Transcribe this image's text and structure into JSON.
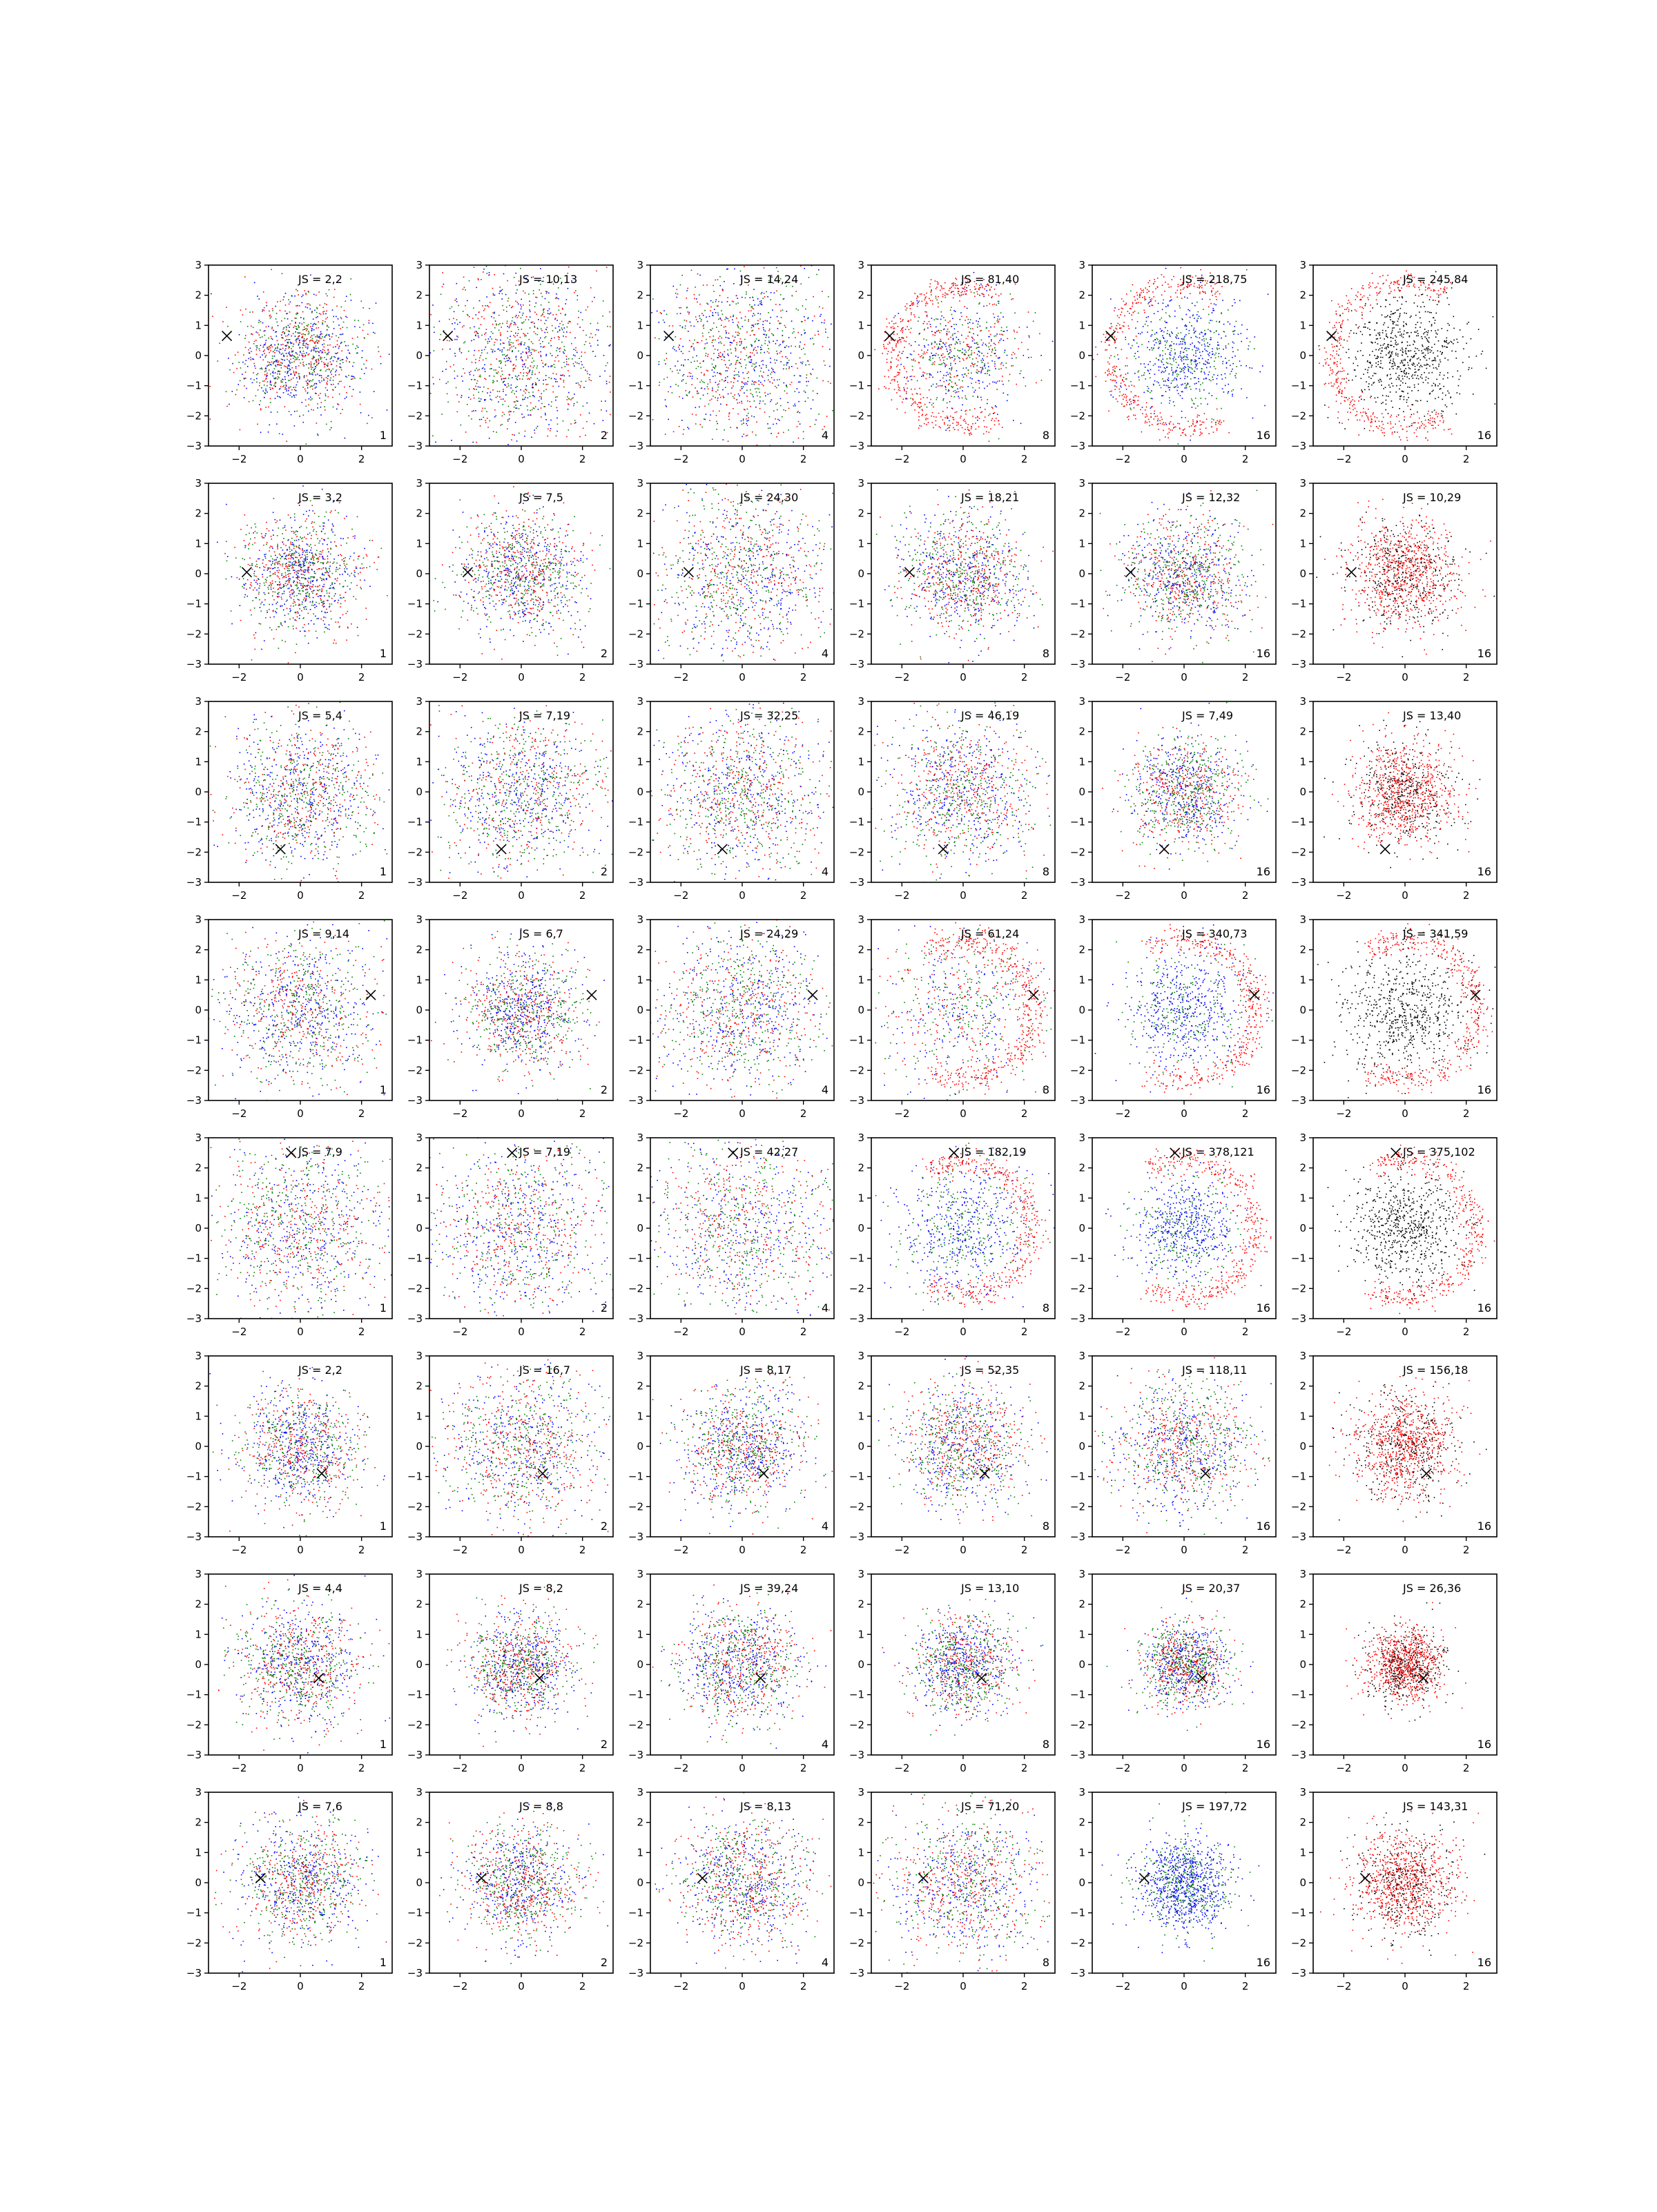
{
  "colors": {
    "red": "#ff0000",
    "green": "#008000",
    "blue": "#0000ff",
    "black": "#000000",
    "frame": "#000000"
  },
  "shared_axes": {
    "xlim": [
      -3,
      3
    ],
    "ylim": [
      -3,
      3
    ],
    "xticks": [
      -2,
      0,
      2
    ],
    "yticks": [
      3,
      2,
      1,
      0,
      -1,
      -2,
      -3
    ],
    "xtick_labels": [
      "−2",
      "0",
      "2"
    ],
    "ytick_labels": [
      "3",
      "2",
      "1",
      "0",
      "−1",
      "−2",
      "−3"
    ]
  },
  "chart_data": [
    {
      "type": "scatter",
      "row": 1,
      "col": 1,
      "title": "JS = 2,2",
      "corner_label": "1",
      "marker": {
        "x": -2.4,
        "y": 0.65
      },
      "spread": 1.0,
      "mix": "rgb",
      "ring": false
    },
    {
      "type": "scatter",
      "row": 1,
      "col": 2,
      "title": "JS = 10,13",
      "corner_label": "2",
      "marker": {
        "x": -2.4,
        "y": 0.65
      },
      "spread": 1.45,
      "mix": "rgb",
      "ring": false
    },
    {
      "type": "scatter",
      "row": 1,
      "col": 3,
      "title": "JS = 14,24",
      "corner_label": "4",
      "marker": {
        "x": -2.4,
        "y": 0.65
      },
      "spread": 1.6,
      "mix": "rgb",
      "ring": false
    },
    {
      "type": "scatter",
      "row": 1,
      "col": 4,
      "title": "JS = 81,40",
      "corner_label": "8",
      "marker": {
        "x": -2.4,
        "y": 0.65
      },
      "spread": 1.0,
      "mix": "rgb",
      "ring": true,
      "ring_dir": "left",
      "ring_r": 2.3
    },
    {
      "type": "scatter",
      "row": 1,
      "col": 5,
      "title": "JS = 218,75",
      "corner_label": "16",
      "marker": {
        "x": -2.4,
        "y": 0.65
      },
      "spread": 0.95,
      "mix": "bg",
      "ring": true,
      "ring_dir": "left",
      "ring_r": 2.4
    },
    {
      "type": "scatter",
      "row": 1,
      "col": 6,
      "title": "JS = 245,84",
      "corner_label": "16",
      "marker": {
        "x": -2.4,
        "y": 0.65
      },
      "spread": 0.95,
      "mix": "k",
      "ring": true,
      "ring_dir": "left",
      "ring_r": 2.4
    },
    {
      "type": "scatter",
      "row": 2,
      "col": 1,
      "title": "JS = 3,2",
      "corner_label": "1",
      "marker": {
        "x": -1.75,
        "y": 0.05
      },
      "spread": 0.95,
      "mix": "rgb",
      "ring": false
    },
    {
      "type": "scatter",
      "row": 2,
      "col": 2,
      "title": "JS = 7,5",
      "corner_label": "2",
      "marker": {
        "x": -1.75,
        "y": 0.05
      },
      "spread": 1.0,
      "mix": "rgb",
      "ring": false
    },
    {
      "type": "scatter",
      "row": 2,
      "col": 3,
      "title": "JS = 24,30",
      "corner_label": "4",
      "marker": {
        "x": -1.75,
        "y": 0.05
      },
      "spread": 1.4,
      "mix": "rgb",
      "ring": false
    },
    {
      "type": "scatter",
      "row": 2,
      "col": 4,
      "title": "JS = 18,21",
      "corner_label": "8",
      "marker": {
        "x": -1.75,
        "y": 0.05
      },
      "spread": 1.0,
      "mix": "rgb",
      "ring": false
    },
    {
      "type": "scatter",
      "row": 2,
      "col": 5,
      "title": "JS = 12,32",
      "corner_label": "16",
      "marker": {
        "x": -1.75,
        "y": 0.05
      },
      "spread": 0.95,
      "mix": "rgb",
      "ring": false
    },
    {
      "type": "scatter",
      "row": 2,
      "col": 6,
      "title": "JS = 10,29",
      "corner_label": "16",
      "marker": {
        "x": -1.75,
        "y": 0.05
      },
      "spread": 0.9,
      "mix": "rk",
      "ring": false
    },
    {
      "type": "scatter",
      "row": 3,
      "col": 1,
      "title": "JS = 5,4",
      "corner_label": "1",
      "marker": {
        "x": -0.65,
        "y": -1.9
      },
      "spread": 1.2,
      "mix": "rgb",
      "ring": false
    },
    {
      "type": "scatter",
      "row": 3,
      "col": 2,
      "title": "JS = 7,19",
      "corner_label": "2",
      "marker": {
        "x": -0.65,
        "y": -1.9
      },
      "spread": 1.3,
      "mix": "rgb",
      "ring": false
    },
    {
      "type": "scatter",
      "row": 3,
      "col": 3,
      "title": "JS = 32,25",
      "corner_label": "4",
      "marker": {
        "x": -0.65,
        "y": -1.9
      },
      "spread": 1.35,
      "mix": "rgb",
      "ring": false
    },
    {
      "type": "scatter",
      "row": 3,
      "col": 4,
      "title": "JS = 46,19",
      "corner_label": "8",
      "marker": {
        "x": -0.65,
        "y": -1.9
      },
      "spread": 1.2,
      "mix": "rgb",
      "ring": false
    },
    {
      "type": "scatter",
      "row": 3,
      "col": 5,
      "title": "JS = 7,49",
      "corner_label": "16",
      "marker": {
        "x": -0.65,
        "y": -1.9
      },
      "spread": 0.9,
      "mix": "rgb",
      "ring": false
    },
    {
      "type": "scatter",
      "row": 3,
      "col": 6,
      "title": "JS = 13,40",
      "corner_label": "16",
      "marker": {
        "x": -0.65,
        "y": -1.9
      },
      "spread": 0.85,
      "mix": "rk",
      "ring": false
    },
    {
      "type": "scatter",
      "row": 4,
      "col": 1,
      "title": "JS = 9,14",
      "corner_label": "1",
      "marker": {
        "x": 2.3,
        "y": 0.5
      },
      "spread": 1.25,
      "mix": "rgb",
      "ring": false
    },
    {
      "type": "scatter",
      "row": 4,
      "col": 2,
      "title": "JS = 6,7",
      "corner_label": "2",
      "marker": {
        "x": 2.3,
        "y": 0.5
      },
      "spread": 0.95,
      "mix": "rgb",
      "ring": false
    },
    {
      "type": "scatter",
      "row": 4,
      "col": 3,
      "title": "JS = 24,29",
      "corner_label": "4",
      "marker": {
        "x": 2.3,
        "y": 0.5
      },
      "spread": 1.3,
      "mix": "rgb",
      "ring": false
    },
    {
      "type": "scatter",
      "row": 4,
      "col": 4,
      "title": "JS = 61,24",
      "corner_label": "8",
      "marker": {
        "x": 2.3,
        "y": 0.5
      },
      "spread": 1.3,
      "mix": "rgb",
      "ring": true,
      "ring_dir": "right",
      "ring_r": 2.3
    },
    {
      "type": "scatter",
      "row": 4,
      "col": 5,
      "title": "JS = 340,73",
      "corner_label": "16",
      "marker": {
        "x": 2.3,
        "y": 0.5
      },
      "spread": 1.0,
      "mix": "bg",
      "ring": true,
      "ring_dir": "right",
      "ring_r": 2.35
    },
    {
      "type": "scatter",
      "row": 4,
      "col": 6,
      "title": "JS = 341,59",
      "corner_label": "16",
      "marker": {
        "x": 2.3,
        "y": 0.5
      },
      "spread": 1.05,
      "mix": "k",
      "ring": true,
      "ring_dir": "right",
      "ring_r": 2.35
    },
    {
      "type": "scatter",
      "row": 5,
      "col": 1,
      "title": "JS = 7,9",
      "corner_label": "1",
      "marker": {
        "x": -0.3,
        "y": 2.5
      },
      "spread": 1.4,
      "mix": "rgb",
      "ring": false
    },
    {
      "type": "scatter",
      "row": 5,
      "col": 2,
      "title": "JS = 7,19",
      "corner_label": "2",
      "marker": {
        "x": -0.3,
        "y": 2.5
      },
      "spread": 1.5,
      "mix": "rgb",
      "ring": false
    },
    {
      "type": "scatter",
      "row": 5,
      "col": 3,
      "title": "JS = 42,27",
      "corner_label": "4",
      "marker": {
        "x": -0.3,
        "y": 2.5
      },
      "spread": 1.55,
      "mix": "rgb",
      "ring": false
    },
    {
      "type": "scatter",
      "row": 5,
      "col": 4,
      "title": "JS = 182,19",
      "corner_label": "8",
      "marker": {
        "x": -0.3,
        "y": 2.5
      },
      "spread": 1.1,
      "mix": "bg",
      "ring": true,
      "ring_dir": "right",
      "ring_r": 2.2
    },
    {
      "type": "scatter",
      "row": 5,
      "col": 5,
      "title": "JS = 378,121",
      "corner_label": "16",
      "marker": {
        "x": -0.3,
        "y": 2.5
      },
      "spread": 0.85,
      "mix": "bg",
      "ring": true,
      "ring_dir": "right",
      "ring_r": 2.3
    },
    {
      "type": "scatter",
      "row": 5,
      "col": 6,
      "title": "JS = 375,102",
      "corner_label": "16",
      "marker": {
        "x": -0.3,
        "y": 2.5
      },
      "spread": 0.9,
      "mix": "k",
      "ring": true,
      "ring_dir": "right",
      "ring_r": 2.3
    },
    {
      "type": "scatter",
      "row": 6,
      "col": 1,
      "title": "JS = 2,2",
      "corner_label": "1",
      "marker": {
        "x": 0.7,
        "y": -0.9
      },
      "spread": 0.95,
      "mix": "rgb",
      "ring": false
    },
    {
      "type": "scatter",
      "row": 6,
      "col": 2,
      "title": "JS = 16,7",
      "corner_label": "2",
      "marker": {
        "x": 0.7,
        "y": -0.9
      },
      "spread": 1.25,
      "mix": "rgb",
      "ring": false
    },
    {
      "type": "scatter",
      "row": 6,
      "col": 3,
      "title": "JS = 8,17",
      "corner_label": "4",
      "marker": {
        "x": 0.7,
        "y": -0.9
      },
      "spread": 1.0,
      "mix": "rgb",
      "ring": false
    },
    {
      "type": "scatter",
      "row": 6,
      "col": 4,
      "title": "JS = 52,35",
      "corner_label": "8",
      "marker": {
        "x": 0.7,
        "y": -0.9
      },
      "spread": 1.0,
      "mix": "rgb",
      "ring": false
    },
    {
      "type": "scatter",
      "row": 6,
      "col": 5,
      "title": "JS = 118,11",
      "corner_label": "16",
      "marker": {
        "x": 0.7,
        "y": -0.9
      },
      "spread": 1.1,
      "mix": "rgb",
      "ring": false
    },
    {
      "type": "scatter",
      "row": 6,
      "col": 6,
      "title": "JS = 156,18",
      "corner_label": "16",
      "marker": {
        "x": 0.7,
        "y": -0.9
      },
      "spread": 0.85,
      "mix": "rk",
      "ring": false
    },
    {
      "type": "scatter",
      "row": 7,
      "col": 1,
      "title": "JS = 4,4",
      "corner_label": "1",
      "marker": {
        "x": 0.6,
        "y": -0.45
      },
      "spread": 1.0,
      "mix": "rgb",
      "ring": false
    },
    {
      "type": "scatter",
      "row": 7,
      "col": 2,
      "title": "JS = 8,2",
      "corner_label": "2",
      "marker": {
        "x": 0.6,
        "y": -0.45
      },
      "spread": 0.85,
      "mix": "rgb",
      "ring": false
    },
    {
      "type": "scatter",
      "row": 7,
      "col": 3,
      "title": "JS = 39,24",
      "corner_label": "4",
      "marker": {
        "x": 0.6,
        "y": -0.45
      },
      "spread": 0.95,
      "mix": "rgb",
      "ring": false
    },
    {
      "type": "scatter",
      "row": 7,
      "col": 4,
      "title": "JS = 13,10",
      "corner_label": "8",
      "marker": {
        "x": 0.6,
        "y": -0.45
      },
      "spread": 0.8,
      "mix": "rgb",
      "ring": false
    },
    {
      "type": "scatter",
      "row": 7,
      "col": 5,
      "title": "JS = 20,37",
      "corner_label": "16",
      "marker": {
        "x": 0.6,
        "y": -0.45
      },
      "spread": 0.7,
      "mix": "rgb",
      "ring": false
    },
    {
      "type": "scatter",
      "row": 7,
      "col": 6,
      "title": "JS = 26,36",
      "corner_label": "16",
      "marker": {
        "x": 0.6,
        "y": -0.45
      },
      "spread": 0.6,
      "mix": "rk",
      "ring": false
    },
    {
      "type": "scatter",
      "row": 8,
      "col": 1,
      "title": "JS = 7,6",
      "corner_label": "1",
      "marker": {
        "x": -1.3,
        "y": 0.15
      },
      "spread": 1.0,
      "mix": "rgb",
      "ring": false
    },
    {
      "type": "scatter",
      "row": 8,
      "col": 2,
      "title": "JS = 8,8",
      "corner_label": "2",
      "marker": {
        "x": -1.3,
        "y": 0.15
      },
      "spread": 0.95,
      "mix": "rgb",
      "ring": false
    },
    {
      "type": "scatter",
      "row": 8,
      "col": 3,
      "title": "JS = 8,13",
      "corner_label": "4",
      "marker": {
        "x": -1.3,
        "y": 0.15
      },
      "spread": 1.05,
      "mix": "rgb",
      "ring": false
    },
    {
      "type": "scatter",
      "row": 8,
      "col": 4,
      "title": "JS = 71,20",
      "corner_label": "8",
      "marker": {
        "x": -1.3,
        "y": 0.15
      },
      "spread": 1.2,
      "mix": "rgb",
      "ring": false
    },
    {
      "type": "scatter",
      "row": 8,
      "col": 5,
      "title": "JS = 197,72",
      "corner_label": "16",
      "marker": {
        "x": -1.3,
        "y": 0.15
      },
      "spread": 0.75,
      "mix": "bg",
      "ring": false
    },
    {
      "type": "scatter",
      "row": 8,
      "col": 6,
      "title": "JS = 143,31",
      "corner_label": "16",
      "marker": {
        "x": -1.3,
        "y": 0.15
      },
      "spread": 0.85,
      "mix": "rk",
      "ring": false
    }
  ]
}
